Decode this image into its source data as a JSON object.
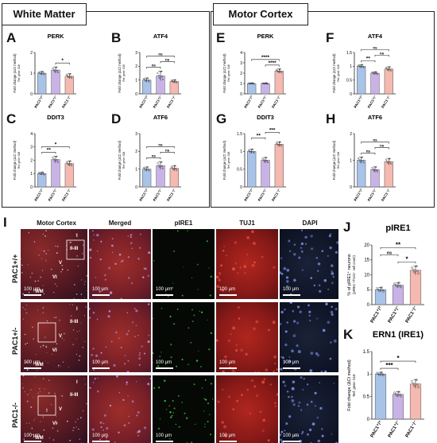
{
  "sections": {
    "white_matter": "White Matter",
    "motor_cortex": "Motor Cortex"
  },
  "genotype_labels": [
    "PAC1+/+",
    "PAC1+/-",
    "PAC1-/-"
  ],
  "colors": {
    "wt": "#a9c3e8",
    "het": "#c9b3e6",
    "ko": "#f4b9b0",
    "dots": "#222222"
  },
  "chart_data": [
    {
      "panel": "A",
      "type": "bar",
      "title": "PERK",
      "ylabel": "Fold change (ΔCt method)",
      "ylabel2": "Ref. gene: S18",
      "categories": [
        "PAC1+/+",
        "PAC1+/-",
        "PAC1-/-"
      ],
      "values": [
        1.0,
        1.15,
        0.85
      ],
      "errors": [
        0.08,
        0.15,
        0.12
      ],
      "ylim": [
        0,
        2
      ],
      "yticks": [
        0,
        1,
        2
      ],
      "sig": [
        {
          "a": 1,
          "b": 2,
          "label": "*"
        }
      ]
    },
    {
      "panel": "B",
      "type": "bar",
      "title": "ATF4",
      "ylabel": "Fold change (ΔCt method)",
      "ylabel2": "Ref. gene: S18",
      "categories": [
        "PAC1+/+",
        "PAC1+/-",
        "PAC1-/-"
      ],
      "values": [
        1.0,
        1.3,
        0.9
      ],
      "errors": [
        0.15,
        0.35,
        0.12
      ],
      "ylim": [
        0,
        3
      ],
      "yticks": [
        0,
        1,
        2,
        3
      ],
      "sig": [
        {
          "a": 0,
          "b": 1,
          "label": "ns"
        },
        {
          "a": 1,
          "b": 2,
          "label": "ns"
        },
        {
          "a": 0,
          "b": 2,
          "label": "ns"
        }
      ]
    },
    {
      "panel": "C",
      "type": "bar",
      "title": "DDIT3",
      "ylabel": "Fold change (ΔCt method)",
      "ylabel2": "Ref. gene: S18",
      "categories": [
        "PAC1+/+",
        "PAC1+/-",
        "PAC1-/-"
      ],
      "values": [
        1.0,
        2.05,
        1.75
      ],
      "errors": [
        0.1,
        0.25,
        0.2
      ],
      "ylim": [
        0,
        4
      ],
      "yticks": [
        0,
        1,
        2,
        3,
        4
      ],
      "sig": [
        {
          "a": 0,
          "b": 1,
          "label": "**"
        },
        {
          "a": 0,
          "b": 2,
          "label": "*"
        }
      ]
    },
    {
      "panel": "D",
      "type": "bar",
      "title": "ATF6",
      "ylabel": "Fold change (ΔCt method)",
      "ylabel2": "Ref. gene: S18",
      "categories": [
        "PAC1+/+",
        "PAC1+/-",
        "PAC1-/-"
      ],
      "values": [
        1.0,
        1.2,
        1.05
      ],
      "errors": [
        0.12,
        0.22,
        0.15
      ],
      "ylim": [
        0,
        3
      ],
      "yticks": [
        0,
        1,
        2,
        3
      ],
      "sig": [
        {
          "a": 0,
          "b": 1,
          "label": "ns"
        },
        {
          "a": 1,
          "b": 2,
          "label": "ns"
        },
        {
          "a": 0,
          "b": 2,
          "label": "ns"
        }
      ]
    },
    {
      "panel": "E",
      "type": "bar",
      "title": "PERK",
      "ylabel": "Fold change (ΔCt method)",
      "ylabel2": "Ref. gene: S18",
      "categories": [
        "PAC1+/+",
        "PAC1+/-",
        "PAC1-/-"
      ],
      "values": [
        1.0,
        1.0,
        2.2
      ],
      "errors": [
        0.05,
        0.05,
        0.2
      ],
      "ylim": [
        0,
        4
      ],
      "yticks": [
        0,
        1,
        2,
        3,
        4
      ],
      "sig": [
        {
          "a": 1,
          "b": 2,
          "label": "****"
        },
        {
          "a": 0,
          "b": 2,
          "label": "****"
        }
      ]
    },
    {
      "panel": "F",
      "type": "bar",
      "title": "ATF4",
      "ylabel": "Fold change (ΔCt method)",
      "ylabel2": "Ref. gene: S18",
      "categories": [
        "PAC1+/+",
        "PAC1+/-",
        "PAC1-/-"
      ],
      "values": [
        1.0,
        0.75,
        0.9
      ],
      "errors": [
        0.06,
        0.05,
        0.08
      ],
      "ylim": [
        0,
        1.5
      ],
      "yticks": [
        0,
        0.5,
        1.0,
        1.5
      ],
      "sig": [
        {
          "a": 0,
          "b": 1,
          "label": "**"
        },
        {
          "a": 1,
          "b": 2,
          "label": "ns"
        },
        {
          "a": 0,
          "b": 2,
          "label": "ns"
        }
      ]
    },
    {
      "panel": "G",
      "type": "bar",
      "title": "DDIT3",
      "ylabel": "Fold change (ΔCt method)",
      "ylabel2": "Ref. gene: S18",
      "categories": [
        "PAC1+/+",
        "PAC1+/-",
        "PAC1-/-"
      ],
      "values": [
        1.0,
        0.75,
        1.2
      ],
      "errors": [
        0.06,
        0.08,
        0.07
      ],
      "ylim": [
        0,
        1.5
      ],
      "yticks": [
        0,
        0.5,
        1.0,
        1.5
      ],
      "sig": [
        {
          "a": 0,
          "b": 1,
          "label": "**"
        },
        {
          "a": 1,
          "b": 2,
          "label": "***"
        }
      ]
    },
    {
      "panel": "H",
      "type": "bar",
      "title": "ATF6",
      "ylabel": "Fold change (ΔCt method)",
      "ylabel2": "Ref. gene: S18",
      "categories": [
        "PAC1+/+",
        "PAC1+/-",
        "PAC1-/-"
      ],
      "values": [
        1.0,
        0.65,
        0.95
      ],
      "errors": [
        0.12,
        0.1,
        0.12
      ],
      "ylim": [
        0,
        2
      ],
      "yticks": [
        0,
        1,
        2
      ],
      "sig": [
        {
          "a": 0,
          "b": 1,
          "label": "ns"
        },
        {
          "a": 1,
          "b": 2,
          "label": "ns"
        },
        {
          "a": 0,
          "b": 2,
          "label": "ns"
        }
      ]
    },
    {
      "panel": "J",
      "type": "bar",
      "title": "pIRE1",
      "ylabel": "% of pIRE1⁺ neurons",
      "ylabel2": "(pIRE1⁺/TUJ1⁺ cell count)",
      "categories": [
        "PAC1+/+",
        "PAC1+/-",
        "PAC1-/-"
      ],
      "values": [
        5.0,
        6.5,
        11.5
      ],
      "errors": [
        0.8,
        0.9,
        1.5
      ],
      "ylim": [
        0,
        20
      ],
      "yticks": [
        0,
        5,
        10,
        15,
        20
      ],
      "sig": [
        {
          "a": 1,
          "b": 2,
          "label": "*"
        },
        {
          "a": 0,
          "b": 1,
          "label": "ns"
        },
        {
          "a": 0,
          "b": 2,
          "label": "**"
        }
      ]
    },
    {
      "panel": "K",
      "type": "bar",
      "title": "ERN1 (IRE1)",
      "ylabel": "Fold change (ΔCt method)",
      "ylabel2": "Ref. gene: S18",
      "categories": [
        "PAC1+/+",
        "PAC1+/-",
        "PAC1-/-"
      ],
      "values": [
        1.0,
        0.55,
        0.78
      ],
      "errors": [
        0.04,
        0.06,
        0.1
      ],
      "ylim": [
        0,
        1.5
      ],
      "yticks": [
        0,
        0.5,
        1.0,
        1.5
      ],
      "sig": [
        {
          "a": 0,
          "b": 1,
          "label": "***"
        },
        {
          "a": 0,
          "b": 2,
          "label": "*"
        }
      ]
    }
  ],
  "microscopy": {
    "panel": "I",
    "columns": [
      "Motor Cortex",
      "Merged",
      "pIRE1",
      "TUJ1",
      "DAPI"
    ],
    "rows": [
      "PAC1+/+",
      "PAC1+/-",
      "PAC1-/-"
    ],
    "scale": "100 μm",
    "layers": {
      "r0": [
        "I",
        "II-III",
        "V",
        "VI",
        "WM"
      ],
      "r1": [
        "I",
        "II-III",
        "V",
        "VI",
        "WM"
      ],
      "r2": [
        "I",
        "II-III",
        "V",
        "VI",
        "WM"
      ]
    }
  }
}
